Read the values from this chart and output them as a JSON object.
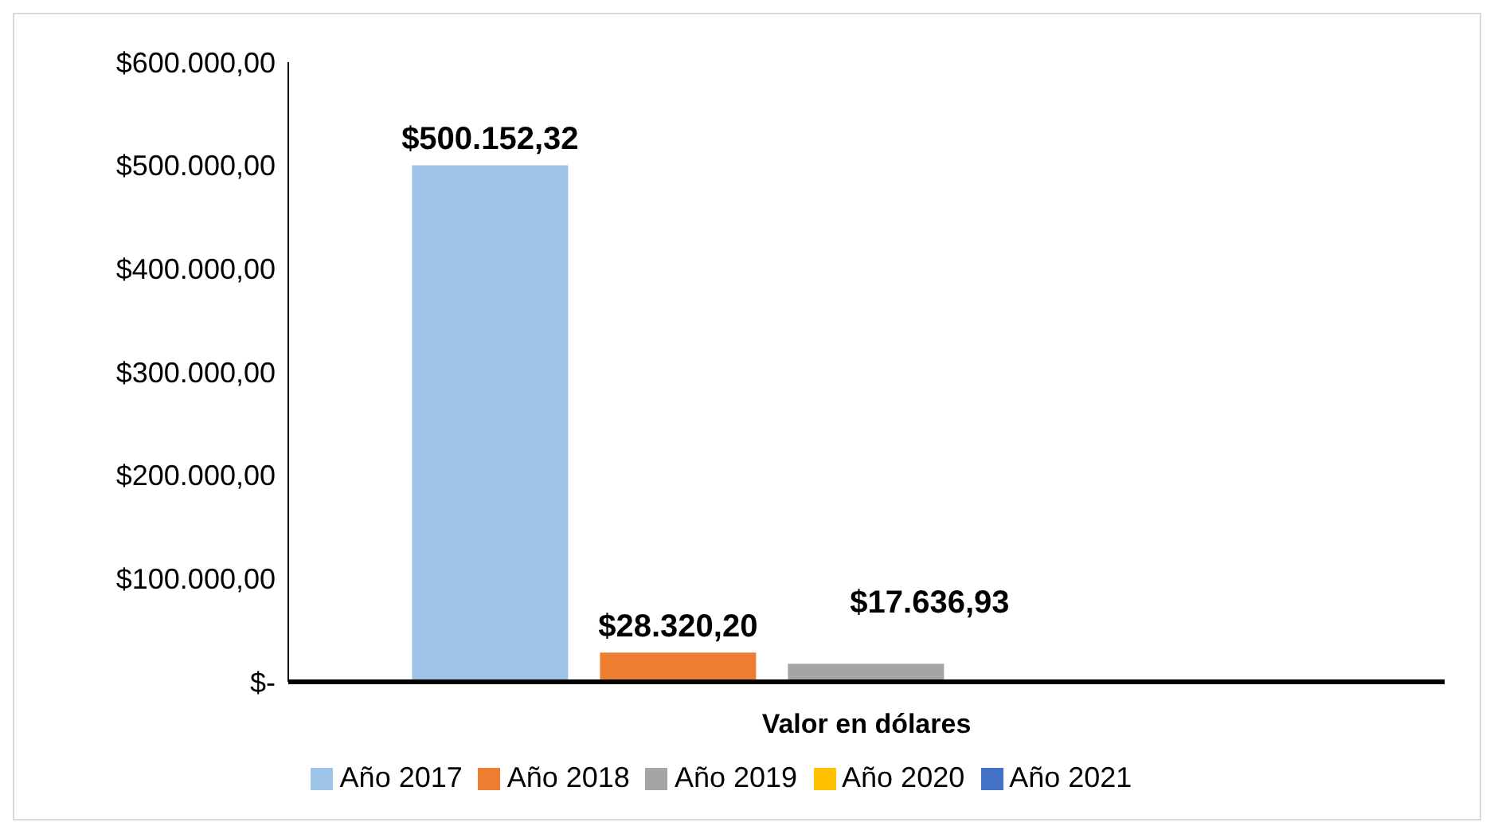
{
  "chart_data": {
    "type": "bar",
    "categories": [
      "Valor en dólares"
    ],
    "series": [
      {
        "name": "Año 2017",
        "color": "#9dc3e6",
        "values": [
          500152.32
        ],
        "value_labels": [
          "$500.152,32"
        ]
      },
      {
        "name": "Año 2018",
        "color": "#ed7d31",
        "values": [
          28320.2
        ],
        "value_labels": [
          "$28.320,20"
        ]
      },
      {
        "name": "Año 2019",
        "color": "#a5a5a5",
        "values": [
          17636.93
        ],
        "value_labels": [
          "$17.636,93"
        ]
      },
      {
        "name": "Año 2020",
        "color": "#ffc000",
        "values": [
          null
        ],
        "value_labels": [
          null
        ]
      },
      {
        "name": "Año 2021",
        "color": "#4472c4",
        "values": [
          null
        ],
        "value_labels": [
          null
        ]
      }
    ],
    "ylim": [
      0,
      600000
    ],
    "yticks": [
      {
        "value": 0,
        "label": "$-"
      },
      {
        "value": 100000,
        "label": "$100.000,00"
      },
      {
        "value": 200000,
        "label": "$200.000,00"
      },
      {
        "value": 300000,
        "label": "$300.000,00"
      },
      {
        "value": 400000,
        "label": "$400.000,00"
      },
      {
        "value": 500000,
        "label": "$500.000,00"
      },
      {
        "value": 600000,
        "label": "$600.000,00"
      }
    ],
    "grid": false,
    "legend": "bottom"
  }
}
